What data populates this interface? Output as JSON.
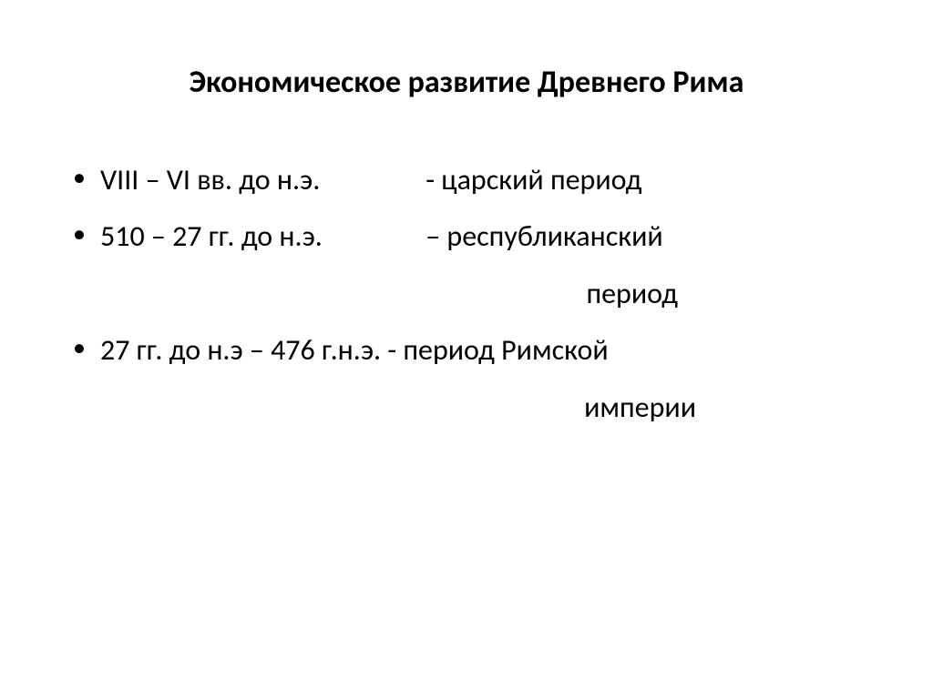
{
  "slide": {
    "title": "Экономическое развитие Древнего Рима",
    "bullets": [
      {
        "dates": "VIII – VI вв. до н.э.",
        "sep": "         - ",
        "label": "царский период",
        "continuation": ""
      },
      {
        "dates": "510 – 27 гг. до н.э.",
        "sep": "          – ",
        "label": "республиканский",
        "continuation": "период"
      },
      {
        "dates": "27 гг. до н.э – 476 г.н.э.",
        "sep": "  - ",
        "label": "период Римской",
        "continuation": "империи"
      }
    ],
    "colors": {
      "background": "#ffffff",
      "text": "#000000"
    },
    "typography": {
      "title_fontsize": 34,
      "title_weight": "bold",
      "body_fontsize": 32,
      "font_family": "Calibri"
    }
  }
}
